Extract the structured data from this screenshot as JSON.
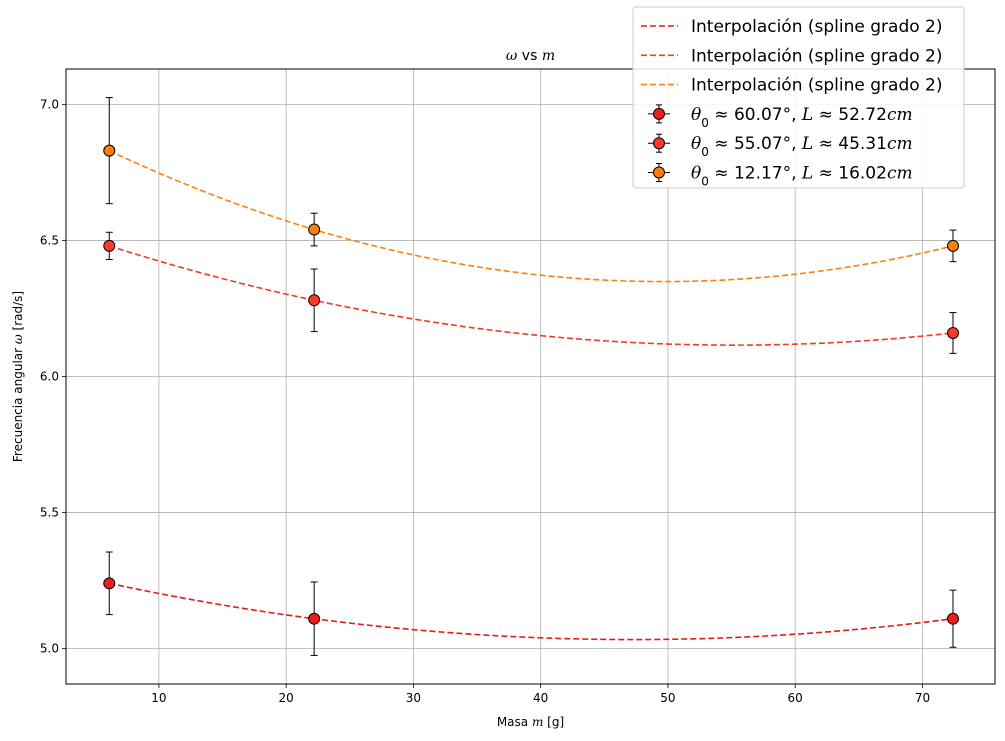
{
  "chart_data": {
    "type": "scatter",
    "title": "ω vs m",
    "title_parts": [
      {
        "t": "ω",
        "it": true
      },
      {
        "t": " vs ",
        "it": false
      },
      {
        "t": "m",
        "it": true
      }
    ],
    "xlabel": "Masa m [g]",
    "xlabel_parts": [
      {
        "t": "Masa ",
        "it": false
      },
      {
        "t": "m",
        "it": true
      },
      {
        "t": " [g]",
        "it": false
      }
    ],
    "ylabel": "Frecuencia angular ω [rad/s]",
    "ylabel_parts": [
      {
        "t": "Frecuencia angular ",
        "it": false
      },
      {
        "t": "ω",
        "it": true
      },
      {
        "t": " [rad/s]",
        "it": false
      }
    ],
    "xlim": [
      2.7,
      75.7
    ],
    "ylim": [
      4.87,
      7.13
    ],
    "xticks": [
      10,
      20,
      30,
      40,
      50,
      60,
      70
    ],
    "yticks": [
      5.0,
      5.5,
      6.0,
      6.5,
      7.0
    ],
    "xtick_labels": [
      "10",
      "20",
      "30",
      "40",
      "50",
      "60",
      "70"
    ],
    "ytick_labels": [
      "5.0",
      "5.5",
      "6.0",
      "6.5",
      "7.0"
    ],
    "grid": true,
    "legend_position": "upper-right",
    "interp_label": "Interpolación (spline grado 2)",
    "series": [
      {
        "name": "θ0 ≈ 60.07°, L ≈ 52.72cm",
        "legend_parts": [
          {
            "t": "θ",
            "it": true
          },
          {
            "t": "0",
            "sub": true
          },
          {
            "t": " ≈ 60.07°, ",
            "it": false
          },
          {
            "t": "L",
            "it": true
          },
          {
            "t": " ≈ 52.72",
            "it": false
          },
          {
            "t": "cm",
            "it": true
          }
        ],
        "marker_color": "#ee1c1c",
        "line_color": "#e41a1c",
        "x": [
          6.1,
          22.2,
          72.4
        ],
        "y": [
          5.24,
          5.11,
          5.11
        ],
        "yerr": [
          0.115,
          0.135,
          0.105
        ]
      },
      {
        "name": "θ0 ≈ 55.07°, L ≈ 45.31cm",
        "legend_parts": [
          {
            "t": "θ",
            "it": true
          },
          {
            "t": "0",
            "sub": true
          },
          {
            "t": " ≈ 55.07°, ",
            "it": false
          },
          {
            "t": "L",
            "it": true
          },
          {
            "t": " ≈ 45.31",
            "it": false
          },
          {
            "t": "cm",
            "it": true
          }
        ],
        "marker_color": "#ff3a2a",
        "line_color": "#f03a2a",
        "x": [
          6.1,
          22.2,
          72.4
        ],
        "y": [
          6.48,
          6.28,
          6.16
        ],
        "yerr": [
          0.05,
          0.115,
          0.075
        ]
      },
      {
        "name": "θ0 ≈ 12.17°, L ≈ 16.02cm",
        "legend_parts": [
          {
            "t": "θ",
            "it": true
          },
          {
            "t": "0",
            "sub": true
          },
          {
            "t": " ≈ 12.17°, ",
            "it": false
          },
          {
            "t": "L",
            "it": true
          },
          {
            "t": " ≈ 16.02",
            "it": false
          },
          {
            "t": "cm",
            "it": true
          }
        ],
        "marker_color": "#ff7f0e",
        "line_color": "#ff7f0e",
        "x": [
          6.1,
          22.2,
          72.4
        ],
        "y": [
          6.83,
          6.54,
          6.48
        ],
        "yerr": [
          0.195,
          0.06,
          0.058
        ]
      }
    ]
  }
}
